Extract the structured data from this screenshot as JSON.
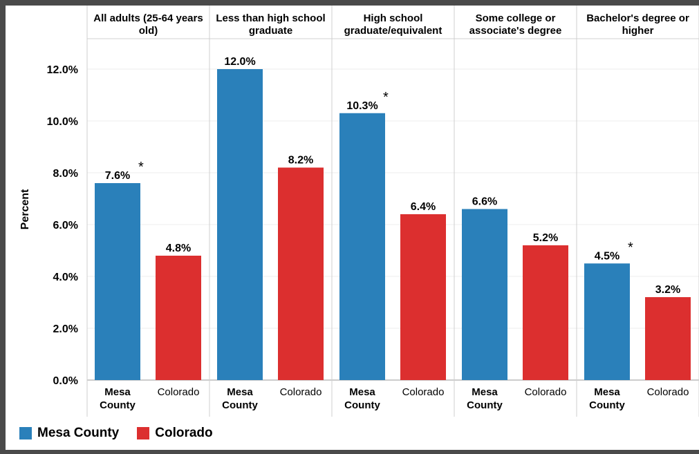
{
  "chart_data": {
    "type": "bar",
    "ylabel": "Percent",
    "ylim": [
      0,
      13.2
    ],
    "yticks": [
      "0.0%",
      "2.0%",
      "4.0%",
      "6.0%",
      "8.0%",
      "10.0%",
      "12.0%"
    ],
    "ytick_values": [
      0,
      2,
      4,
      6,
      8,
      10,
      12
    ],
    "groups": [
      {
        "label": "All adults (25-64 years old)",
        "label_lines": [
          "All adults (25-64 years",
          "old)"
        ]
      },
      {
        "label": "Less than high school graduate",
        "label_lines": [
          "Less than high school",
          "graduate"
        ]
      },
      {
        "label": "High school graduate/equivalent",
        "label_lines": [
          "High school",
          "graduate/equivalent"
        ]
      },
      {
        "label": "Some college or associate's degree",
        "label_lines": [
          "Some college or",
          "associate's degree"
        ]
      },
      {
        "label": "Bachelor's degree or higher",
        "label_lines": [
          "Bachelor's degree or",
          "higher"
        ]
      }
    ],
    "series": [
      {
        "name": "Mesa County",
        "color": "#2a80ba",
        "tick_label_lines": [
          "Mesa",
          "County"
        ],
        "values": [
          7.6,
          12.0,
          10.3,
          6.6,
          4.5
        ],
        "labels": [
          "7.6%",
          "12.0%",
          "10.3%",
          "6.6%",
          "4.5%"
        ],
        "significant": [
          true,
          false,
          true,
          false,
          true
        ]
      },
      {
        "name": "Colorado",
        "color": "#dc2f2f",
        "tick_label_lines": [
          "Colorado"
        ],
        "values": [
          4.8,
          8.2,
          6.4,
          5.2,
          3.2
        ],
        "labels": [
          "4.8%",
          "8.2%",
          "6.4%",
          "5.2%",
          "3.2%"
        ],
        "significant": [
          false,
          false,
          false,
          false,
          false
        ]
      }
    ],
    "significance_marker": "*",
    "grid": true,
    "legend_position": "bottom-left"
  },
  "legend": {
    "items": [
      {
        "label": "Mesa County",
        "color": "#2a80ba"
      },
      {
        "label": "Colorado",
        "color": "#dc2f2f"
      }
    ]
  }
}
